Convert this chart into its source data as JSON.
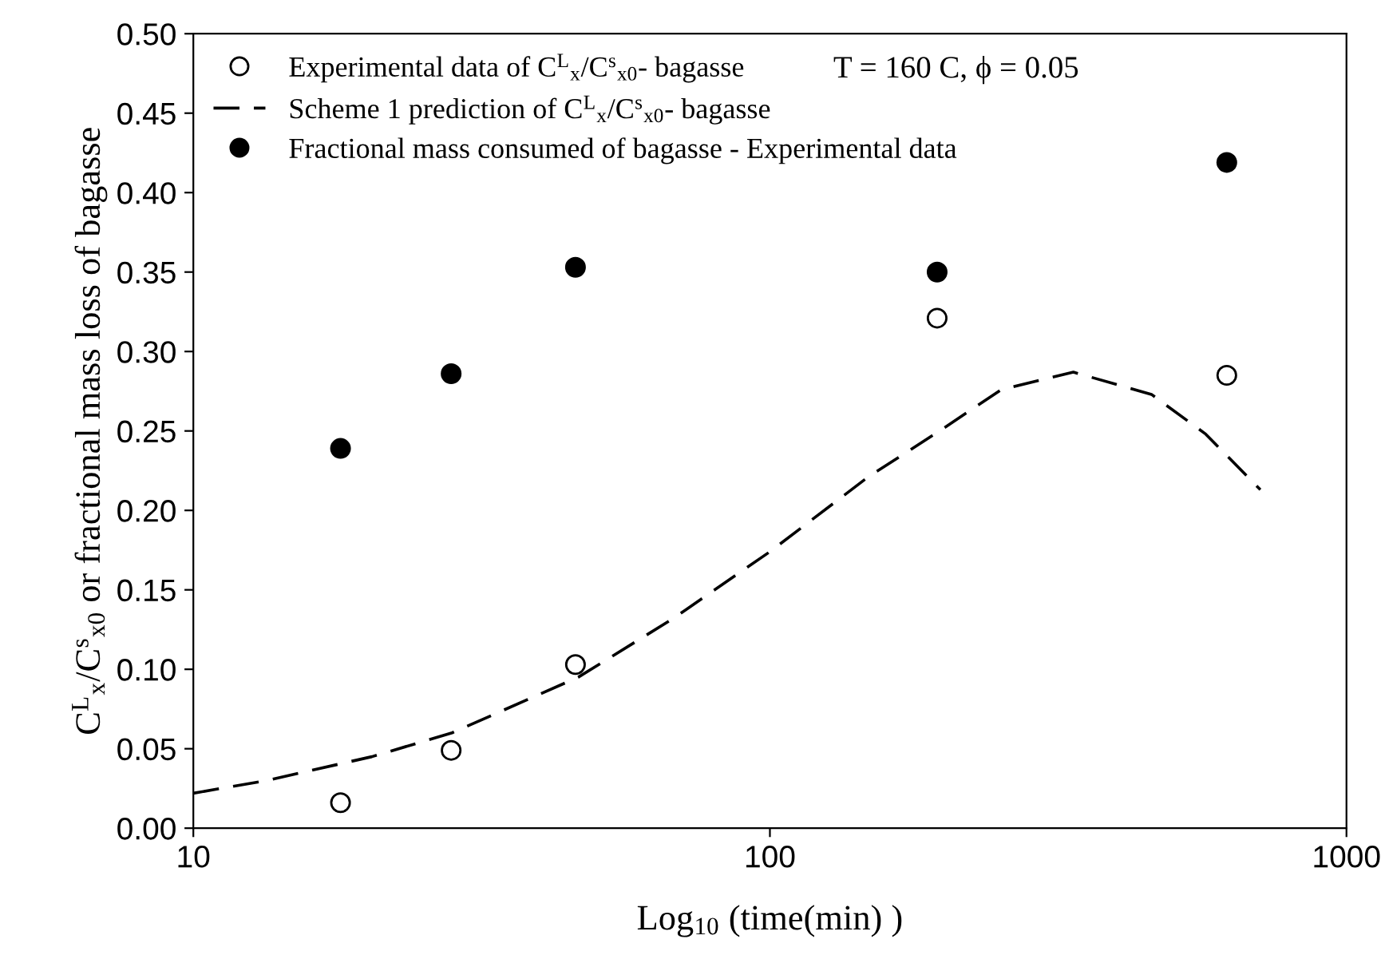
{
  "chart_data": {
    "type": "scatter",
    "xlabel": "Log$_{10}$ (time(min) )",
    "ylabel": "C$^{L}$$_{x}$/C$^{s}$$_{x0}$ or fractional mass loss of bagasse",
    "annotations": [
      "T = 160 C, ϕ = 0.05"
    ],
    "log": "x",
    "xlim": [
      10,
      1000
    ],
    "xticks": [
      10,
      100,
      1000
    ],
    "ylim": [
      0,
      0.5
    ],
    "yticks": [
      {
        "value": 0,
        "label": "0.00"
      },
      {
        "value": 0.05,
        "label": "0.05"
      },
      {
        "value": 0.1,
        "label": "0.10"
      },
      {
        "value": 0.15,
        "label": "0.15"
      },
      {
        "value": 0.2,
        "label": "0.20"
      },
      {
        "value": 0.25,
        "label": "0.25"
      },
      {
        "value": 0.3,
        "label": "0.30"
      },
      {
        "value": 0.35,
        "label": "0.35"
      },
      {
        "value": 0.4,
        "label": "0.40"
      },
      {
        "value": 0.45,
        "label": "0.45"
      },
      {
        "value": 0.5,
        "label": "0.50"
      }
    ],
    "grid": false,
    "legend": "top left",
    "marker": "circle",
    "series": [
      {
        "name": "Experimental data of C$^{L}$$_{x}$/C$^{s}$$_{x0}$- bagasse",
        "color": "#000000",
        "x": [
          18,
          28,
          46,
          195,
          620
        ],
        "values": [
          0.016,
          0.049,
          0.103,
          0.321,
          0.285
        ]
      },
      {
        "name": "Scheme 1 prediction of C$^{L}$$_{x}$/C$^{s}$$_{x0}$- bagasse",
        "type": "line",
        "line_style": "dashed",
        "marker": "none",
        "color": "#000000",
        "x": [
          10,
          13.4,
          20.4,
          28.1,
          46.5,
          68,
          100,
          148,
          195,
          252,
          336,
          459,
          570,
          709
        ],
        "values": [
          0.022,
          0.03,
          0.045,
          0.06,
          0.095,
          0.132,
          0.174,
          0.221,
          0.249,
          0.276,
          0.287,
          0.273,
          0.248,
          0.213
        ]
      },
      {
        "name": "Fractional mass consumed of bagasse - Experimental data",
        "color": "#000000",
        "x": [
          18,
          28,
          46,
          195,
          620
        ],
        "values": [
          0.239,
          0.286,
          0.353,
          0.35,
          0.419
        ]
      }
    ]
  }
}
